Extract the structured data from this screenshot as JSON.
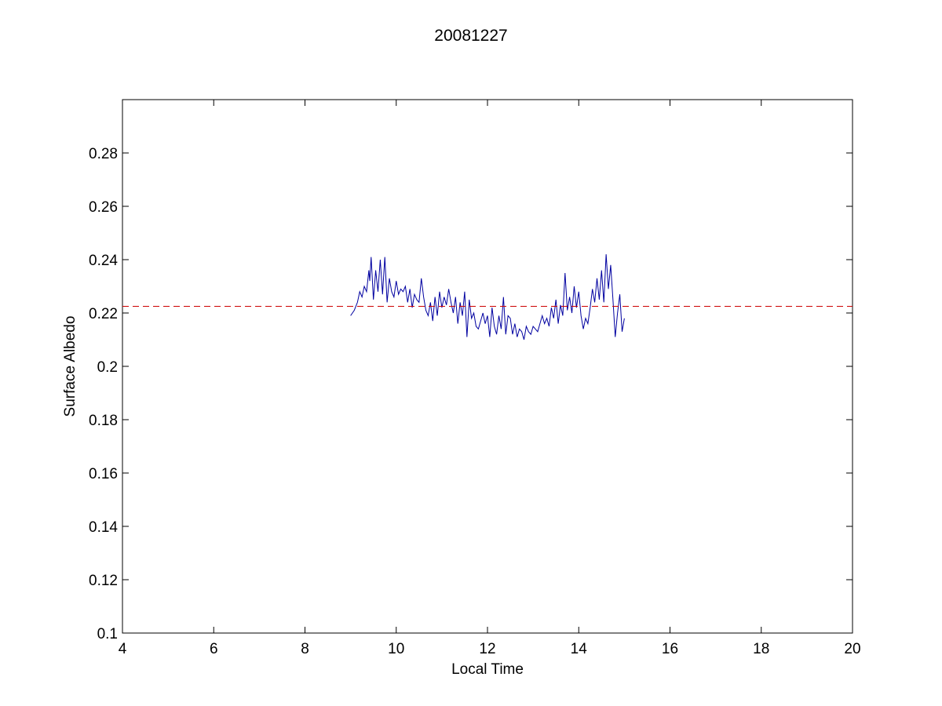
{
  "chart_data": {
    "type": "line",
    "title": "20081227",
    "xlabel": "Local Time",
    "ylabel": "Surface Albedo",
    "xlim": [
      4,
      20
    ],
    "ylim": [
      0.1,
      0.3
    ],
    "xticks": [
      4,
      6,
      8,
      10,
      12,
      14,
      16,
      18,
      20
    ],
    "xtick_labels": [
      "4",
      "6",
      "8",
      "10",
      "12",
      "14",
      "16",
      "18",
      "20"
    ],
    "yticks": [
      0.1,
      0.12,
      0.14,
      0.16,
      0.18,
      0.2,
      0.22,
      0.24,
      0.26,
      0.28
    ],
    "ytick_labels": [
      "0.1",
      "0.12",
      "0.14",
      "0.16",
      "0.18",
      "0.2",
      "0.22",
      "0.24",
      "0.26",
      "0.28"
    ],
    "grid": false,
    "series": [
      {
        "color": "#0000a0",
        "style": "solid",
        "x": [
          9.0,
          9.08,
          9.15,
          9.2,
          9.25,
          9.3,
          9.35,
          9.4,
          9.42,
          9.45,
          9.5,
          9.55,
          9.6,
          9.65,
          9.7,
          9.75,
          9.8,
          9.85,
          9.9,
          9.95,
          10.0,
          10.05,
          10.1,
          10.15,
          10.2,
          10.25,
          10.3,
          10.35,
          10.4,
          10.45,
          10.5,
          10.55,
          10.6,
          10.65,
          10.7,
          10.75,
          10.8,
          10.85,
          10.9,
          10.95,
          11.0,
          11.05,
          11.1,
          11.15,
          11.2,
          11.25,
          11.3,
          11.35,
          11.4,
          11.45,
          11.5,
          11.55,
          11.6,
          11.65,
          11.7,
          11.75,
          11.8,
          11.85,
          11.9,
          11.95,
          12.0,
          12.05,
          12.1,
          12.15,
          12.2,
          12.25,
          12.3,
          12.35,
          12.4,
          12.45,
          12.5,
          12.55,
          12.6,
          12.65,
          12.7,
          12.75,
          12.8,
          12.85,
          12.9,
          12.95,
          13.0,
          13.05,
          13.1,
          13.15,
          13.2,
          13.25,
          13.3,
          13.35,
          13.4,
          13.45,
          13.5,
          13.55,
          13.6,
          13.65,
          13.7,
          13.75,
          13.8,
          13.85,
          13.9,
          13.95,
          14.0,
          14.05,
          14.1,
          14.15,
          14.2,
          14.25,
          14.3,
          14.35,
          14.4,
          14.45,
          14.5,
          14.55,
          14.6,
          14.65,
          14.7,
          14.75,
          14.8,
          14.85,
          14.9,
          14.95,
          15.0
        ],
        "y": [
          0.219,
          0.221,
          0.224,
          0.228,
          0.226,
          0.23,
          0.228,
          0.236,
          0.232,
          0.241,
          0.225,
          0.236,
          0.228,
          0.24,
          0.227,
          0.241,
          0.224,
          0.233,
          0.228,
          0.226,
          0.232,
          0.227,
          0.229,
          0.228,
          0.23,
          0.224,
          0.229,
          0.222,
          0.227,
          0.225,
          0.224,
          0.233,
          0.226,
          0.221,
          0.219,
          0.224,
          0.217,
          0.226,
          0.219,
          0.228,
          0.222,
          0.226,
          0.223,
          0.229,
          0.224,
          0.22,
          0.226,
          0.216,
          0.224,
          0.219,
          0.228,
          0.211,
          0.225,
          0.218,
          0.22,
          0.215,
          0.214,
          0.217,
          0.22,
          0.216,
          0.219,
          0.211,
          0.222,
          0.215,
          0.212,
          0.219,
          0.214,
          0.226,
          0.212,
          0.219,
          0.218,
          0.212,
          0.216,
          0.211,
          0.214,
          0.213,
          0.21,
          0.215,
          0.213,
          0.212,
          0.215,
          0.214,
          0.213,
          0.216,
          0.219,
          0.216,
          0.218,
          0.215,
          0.222,
          0.218,
          0.225,
          0.216,
          0.223,
          0.219,
          0.235,
          0.221,
          0.226,
          0.22,
          0.23,
          0.222,
          0.228,
          0.219,
          0.214,
          0.218,
          0.216,
          0.222,
          0.229,
          0.224,
          0.233,
          0.225,
          0.236,
          0.224,
          0.242,
          0.229,
          0.238,
          0.225,
          0.211,
          0.22,
          0.227,
          0.213,
          0.218
        ]
      },
      {
        "color": "#cc0000",
        "style": "dashed",
        "x": [
          4,
          20
        ],
        "y": [
          0.2225,
          0.2225
        ]
      }
    ]
  }
}
